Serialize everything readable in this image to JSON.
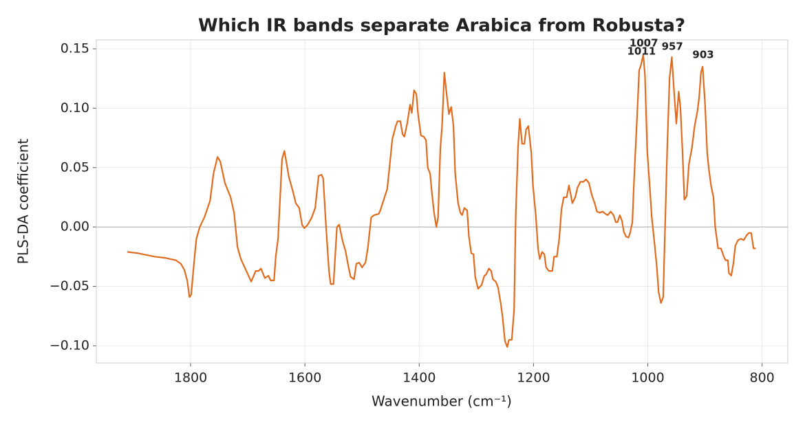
{
  "chart_data": {
    "type": "line",
    "title": "Which IR bands separate Arabica from Robusta?",
    "x_label": "Wavenumber (cm⁻¹)",
    "y_label": "PLS-DA coefficient",
    "color": "#e06b1e",
    "x": [
      1911,
      1893,
      1863,
      1845,
      1826,
      1817,
      1811,
      1806,
      1802,
      1799,
      1794,
      1790,
      1784,
      1776,
      1766,
      1760,
      1753,
      1748,
      1740,
      1730,
      1724,
      1718,
      1712,
      1694,
      1686,
      1681,
      1677,
      1670,
      1664,
      1660,
      1654,
      1651,
      1647,
      1640,
      1636,
      1633,
      1628,
      1621,
      1616,
      1610,
      1605,
      1601,
      1595,
      1588,
      1582,
      1576,
      1571,
      1568,
      1563,
      1558,
      1555,
      1550,
      1544,
      1540,
      1534,
      1529,
      1524,
      1520,
      1514,
      1510,
      1505,
      1500,
      1494,
      1490,
      1484,
      1479,
      1471,
      1468,
      1464,
      1456,
      1451,
      1447,
      1441,
      1438,
      1433,
      1429,
      1426,
      1421,
      1416,
      1413,
      1409,
      1405,
      1402,
      1397,
      1392,
      1388,
      1385,
      1381,
      1378,
      1374,
      1370,
      1367,
      1363,
      1360,
      1356,
      1352,
      1348,
      1344,
      1340,
      1337,
      1332,
      1328,
      1325,
      1321,
      1316,
      1313,
      1309,
      1305,
      1302,
      1297,
      1291,
      1286,
      1283,
      1278,
      1274,
      1271,
      1266,
      1262,
      1257,
      1254,
      1250,
      1246,
      1243,
      1238,
      1234,
      1231,
      1227,
      1224,
      1220,
      1216,
      1213,
      1209,
      1204,
      1201,
      1196,
      1192,
      1189,
      1185,
      1181,
      1178,
      1173,
      1167,
      1164,
      1159,
      1155,
      1151,
      1147,
      1142,
      1138,
      1132,
      1127,
      1123,
      1118,
      1113,
      1108,
      1103,
      1098,
      1093,
      1089,
      1084,
      1079,
      1074,
      1070,
      1065,
      1060,
      1056,
      1053,
      1049,
      1045,
      1042,
      1038,
      1034,
      1031,
      1027,
      1024,
      1019,
      1015,
      1012,
      1008,
      1005,
      1001,
      996,
      993,
      988,
      984,
      981,
      977,
      973,
      970,
      966,
      962,
      958,
      954,
      950,
      946,
      943,
      939,
      936,
      932,
      928,
      923,
      918,
      913,
      910,
      907,
      904,
      900,
      896,
      893,
      889,
      885,
      882,
      877,
      872,
      867,
      864,
      860,
      858,
      854,
      850,
      847,
      842,
      837,
      832,
      827,
      823,
      819,
      815,
      811
    ],
    "values": [
      -0.021,
      -0.022,
      -0.025,
      -0.026,
      -0.028,
      -0.031,
      -0.036,
      -0.045,
      -0.059,
      -0.057,
      -0.03,
      -0.01,
      0.0,
      0.008,
      0.022,
      0.045,
      0.059,
      0.055,
      0.037,
      0.025,
      0.012,
      -0.017,
      -0.027,
      -0.046,
      -0.037,
      -0.037,
      -0.035,
      -0.043,
      -0.041,
      -0.045,
      -0.045,
      -0.025,
      -0.01,
      0.057,
      0.064,
      0.056,
      0.042,
      0.03,
      0.02,
      0.016,
      0.002,
      -0.001,
      0.002,
      0.008,
      0.016,
      0.043,
      0.044,
      0.041,
      0.0,
      -0.036,
      -0.048,
      -0.048,
      0.0,
      0.002,
      -0.012,
      -0.02,
      -0.033,
      -0.042,
      -0.044,
      -0.031,
      -0.03,
      -0.034,
      -0.03,
      -0.018,
      0.008,
      0.01,
      0.011,
      0.014,
      0.02,
      0.032,
      0.055,
      0.074,
      0.085,
      0.089,
      0.089,
      0.078,
      0.076,
      0.087,
      0.103,
      0.096,
      0.115,
      0.112,
      0.095,
      0.077,
      0.076,
      0.073,
      0.05,
      0.045,
      0.03,
      0.012,
      0.0,
      0.008,
      0.066,
      0.085,
      0.13,
      0.112,
      0.095,
      0.101,
      0.085,
      0.045,
      0.02,
      0.012,
      0.01,
      0.016,
      0.014,
      -0.008,
      -0.022,
      -0.023,
      -0.042,
      -0.052,
      -0.049,
      -0.041,
      -0.04,
      -0.035,
      -0.037,
      -0.044,
      -0.046,
      -0.051,
      -0.065,
      -0.076,
      -0.096,
      -0.101,
      -0.095,
      -0.095,
      -0.07,
      0.01,
      0.068,
      0.091,
      0.07,
      0.07,
      0.082,
      0.085,
      0.063,
      0.035,
      0.01,
      -0.018,
      -0.027,
      -0.021,
      -0.023,
      -0.034,
      -0.037,
      -0.037,
      -0.025,
      -0.025,
      -0.01,
      0.015,
      0.025,
      0.025,
      0.035,
      0.02,
      0.025,
      0.033,
      0.038,
      0.038,
      0.04,
      0.037,
      0.027,
      0.02,
      0.013,
      0.012,
      0.013,
      0.011,
      0.01,
      0.013,
      0.01,
      0.004,
      0.004,
      0.01,
      0.005,
      -0.004,
      -0.008,
      -0.009,
      -0.005,
      0.004,
      0.04,
      0.09,
      0.132,
      0.136,
      0.145,
      0.128,
      0.064,
      0.03,
      0.008,
      -0.015,
      -0.035,
      -0.055,
      -0.064,
      -0.059,
      -0.005,
      0.065,
      0.125,
      0.143,
      0.114,
      0.087,
      0.114,
      0.101,
      0.06,
      0.023,
      0.026,
      0.053,
      0.066,
      0.085,
      0.098,
      0.11,
      0.13,
      0.135,
      0.105,
      0.062,
      0.048,
      0.034,
      0.025,
      0.0,
      -0.018,
      -0.018,
      -0.025,
      -0.028,
      -0.028,
      -0.039,
      -0.041,
      -0.03,
      -0.016,
      -0.011,
      -0.01,
      -0.011,
      -0.007,
      -0.005,
      -0.005,
      -0.018,
      -0.018
    ],
    "xlim": [
      1965,
      755
    ],
    "ylim": [
      -0.1145,
      0.1575
    ],
    "xticks": [
      1800,
      1600,
      1400,
      1200,
      1000,
      800
    ],
    "yticks": [
      {
        "value": -0.1,
        "label": "−0.10"
      },
      {
        "value": -0.05,
        "label": "−0.05"
      },
      {
        "value": 0,
        "label": "0.00"
      },
      0.05,
      {
        "value": 0.1,
        "label": "0.10"
      },
      0.15
    ],
    "grid": true,
    "reference_line": 0,
    "annotations": [
      {
        "text": "1007",
        "x": 1007,
        "y": 0.1545
      },
      {
        "text": "1011",
        "x": 1011,
        "y": 0.1476
      },
      {
        "text": "957",
        "x": 957,
        "y": 0.1516
      },
      {
        "text": "903",
        "x": 903,
        "y": 0.1447
      }
    ]
  }
}
